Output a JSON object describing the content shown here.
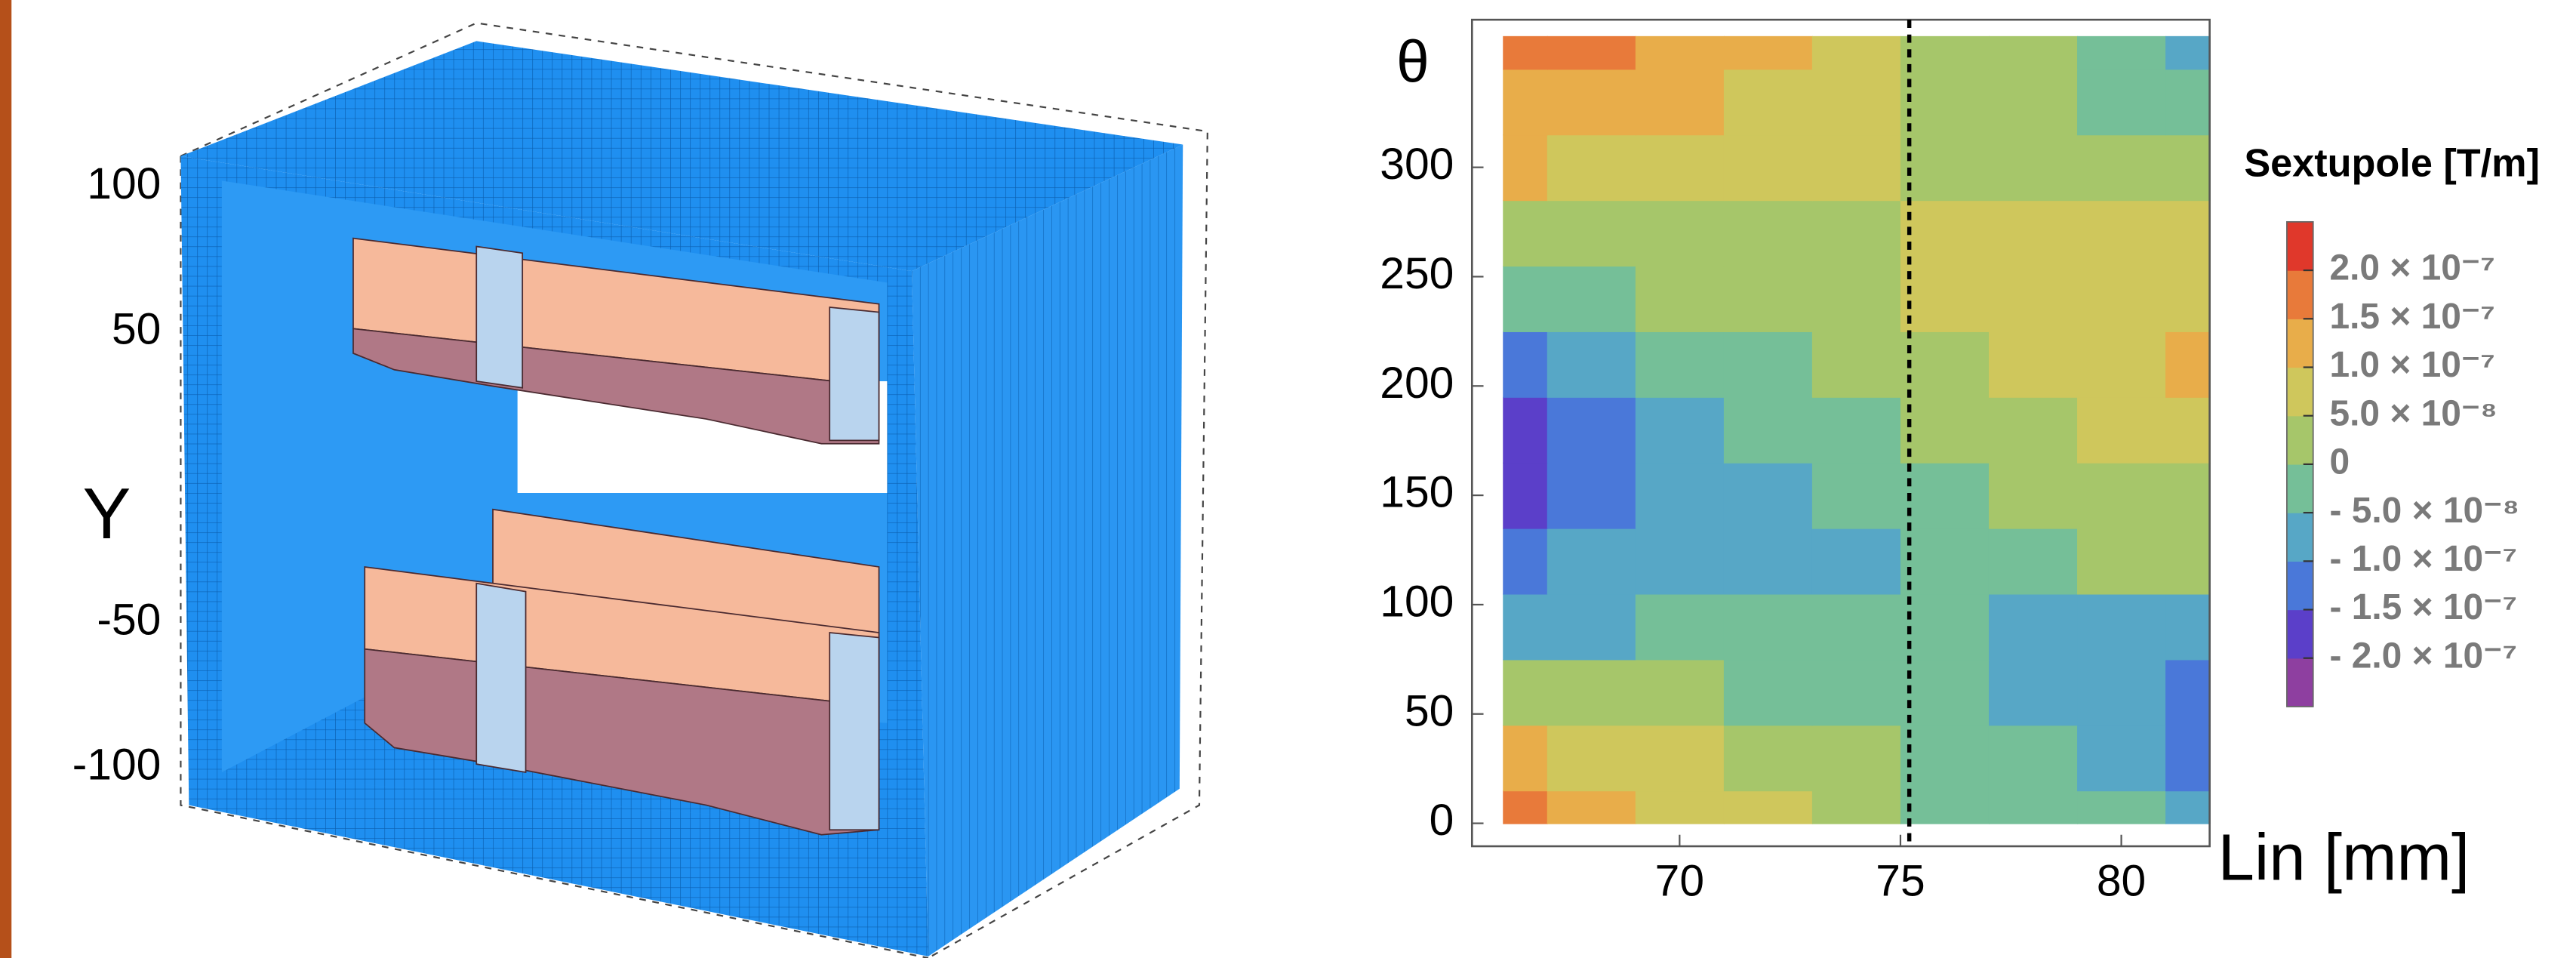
{
  "chart_data": [
    {
      "type": "render3d",
      "ylabel": "Y",
      "ylim": [
        -110,
        110
      ],
      "yticks": [
        100,
        50,
        -50,
        -100
      ]
    },
    {
      "type": "contour",
      "xlabel": "Lin [mm]",
      "ylabel": "θ",
      "x": [
        66,
        68,
        70,
        72,
        74,
        76,
        78,
        80,
        82
      ],
      "y": [
        0,
        30,
        60,
        90,
        120,
        150,
        180,
        210,
        240,
        270,
        300,
        330,
        360
      ],
      "z": [
        [
          1.7e-07,
          1.3e-07,
          9e-08,
          6e-08,
          3e-08,
          -1e-08,
          -3e-08,
          -5e-08,
          -8e-08
        ],
        [
          1.2e-07,
          9e-08,
          6e-08,
          3e-08,
          1e-08,
          -3e-08,
          -5e-08,
          -7e-08,
          -1.1e-07
        ],
        [
          3e-08,
          2e-08,
          0,
          -2e-08,
          -3e-08,
          -5e-08,
          -7e-08,
          -9e-08,
          -1.2e-07
        ],
        [
          -6e-08,
          -5.5e-08,
          -5e-08,
          -4e-08,
          -3e-08,
          -4.5e-08,
          -5.5e-08,
          -6e-08,
          -7e-08
        ],
        [
          -1.1e-07,
          -1e-07,
          -8e-08,
          -7e-08,
          -6e-08,
          -2e-08,
          -1e-08,
          5e-09,
          1e-08
        ],
        [
          -1.6e-07,
          -1.2e-07,
          -9e-08,
          -6e-08,
          -4e-08,
          -1e-08,
          5e-09,
          2e-08,
          3e-08
        ],
        [
          -1.9e-07,
          -1.4e-07,
          -8e-08,
          -4e-08,
          -1e-08,
          1e-08,
          3e-08,
          5e-08,
          7e-08
        ],
        [
          -1.3e-07,
          -9e-08,
          -4e-08,
          -1e-08,
          1e-08,
          3e-08,
          5.5e-08,
          8e-08,
          1.05e-07
        ],
        [
          -3e-08,
          -1e-08,
          1e-08,
          2e-08,
          3e-08,
          5e-08,
          6e-08,
          7.5e-08,
          9e-08
        ],
        [
          2e-08,
          3e-08,
          3.5e-08,
          4e-08,
          4.5e-08,
          6e-08,
          6e-08,
          6e-08,
          6e-08
        ],
        [
          1.05e-07,
          9.5e-08,
          9e-08,
          8.5e-08,
          8e-08,
          4e-08,
          3e-08,
          2e-08,
          1e-08
        ],
        [
          1.4e-07,
          1.3e-07,
          1.05e-07,
          9e-08,
          7.5e-08,
          3e-08,
          0,
          -2e-08,
          -3e-08
        ],
        [
          1.6e-07,
          1.5e-07,
          1.1e-07,
          1e-07,
          7e-08,
          4e-08,
          0,
          -3e-08,
          -7e-08
        ]
      ],
      "xlim": [
        65.3,
        82
      ],
      "ylim": [
        -10.5,
        367.5
      ],
      "xticks": [
        70,
        75,
        80
      ],
      "yticks": [
        0,
        50,
        100,
        150,
        200,
        250,
        300
      ],
      "vline": 75.2,
      "colorbar_label": "Sextupole [T/m]",
      "clim": [
        -2.5e-07,
        2.5e-07
      ],
      "colors": [
        "#8e3fa0",
        "#5b3fc9",
        "#4a78d9",
        "#57a7c6",
        "#75bf98",
        "#a6c66a",
        "#cfc75c",
        "#e8ad4a",
        "#e87a3a",
        "#e0382b"
      ],
      "cticks": [
        {
          "value": 2e-07,
          "label": "2.0 × 10⁻⁷"
        },
        {
          "value": 1.5e-07,
          "label": "1.5 × 10⁻⁷"
        },
        {
          "value": 1e-07,
          "label": "1.0 × 10⁻⁷"
        },
        {
          "value": 5e-08,
          "label": "5.0 × 10⁻⁸"
        },
        0,
        {
          "value": -5e-08,
          "label": "- 5.0 × 10⁻⁸"
        },
        {
          "value": -1e-07,
          "label": "- 1.0 × 10⁻⁷"
        },
        {
          "value": -1.5e-07,
          "label": "- 1.5 × 10⁻⁷"
        },
        {
          "value": -2e-07,
          "label": "- 2.0 × 10⁻⁷"
        }
      ]
    }
  ]
}
